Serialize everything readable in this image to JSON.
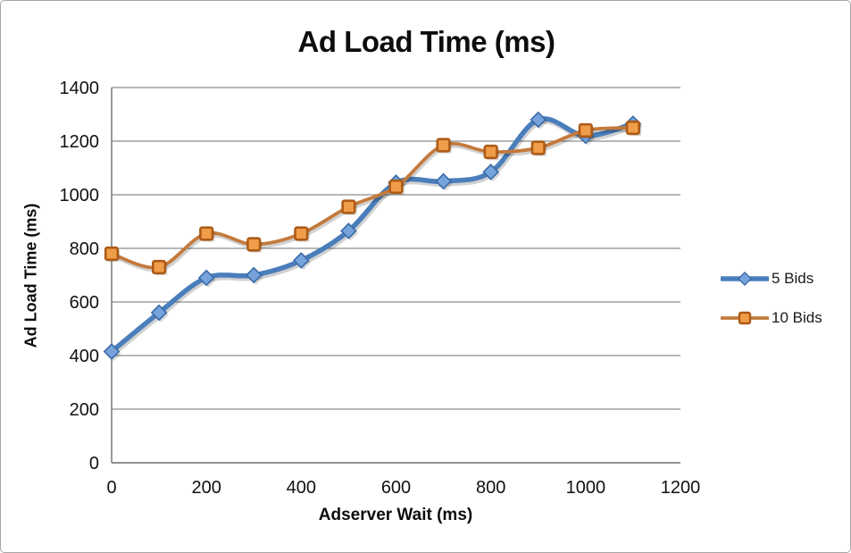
{
  "chart_data": {
    "type": "line",
    "title": "Ad Load Time (ms)",
    "xlabel": "Adserver Wait (ms)",
    "ylabel": "Ad Load Time (ms)",
    "x": [
      0,
      100,
      200,
      300,
      400,
      500,
      600,
      700,
      800,
      900,
      1000,
      1100
    ],
    "series": [
      {
        "name": "5 Bids",
        "marker": "diamond",
        "line_color": "#4a7ebb",
        "marker_fill": "#76a3db",
        "marker_stroke": "#3a6ba8",
        "line_width": 5.5,
        "values": [
          415,
          560,
          690,
          700,
          755,
          865,
          1045,
          1050,
          1085,
          1280,
          1220,
          1265
        ]
      },
      {
        "name": "10 Bids",
        "marker": "square",
        "line_color": "#c47a3c",
        "marker_fill": "#f09d49",
        "marker_stroke": "#ad5b17",
        "line_width": 3.8,
        "values": [
          780,
          730,
          855,
          815,
          855,
          955,
          1030,
          1185,
          1160,
          1175,
          1240,
          1250
        ]
      }
    ],
    "xlim": [
      0,
      1200
    ],
    "ylim": [
      0,
      1400
    ],
    "xticks": [
      0,
      200,
      400,
      600,
      800,
      1000,
      1200
    ],
    "yticks": [
      0,
      200,
      400,
      600,
      800,
      1000,
      1200,
      1400
    ],
    "grid": "horizontal",
    "grid_color": "#8c8c8c",
    "axis_color": "#808080",
    "legend_position": "right",
    "line_style": "smooth"
  }
}
